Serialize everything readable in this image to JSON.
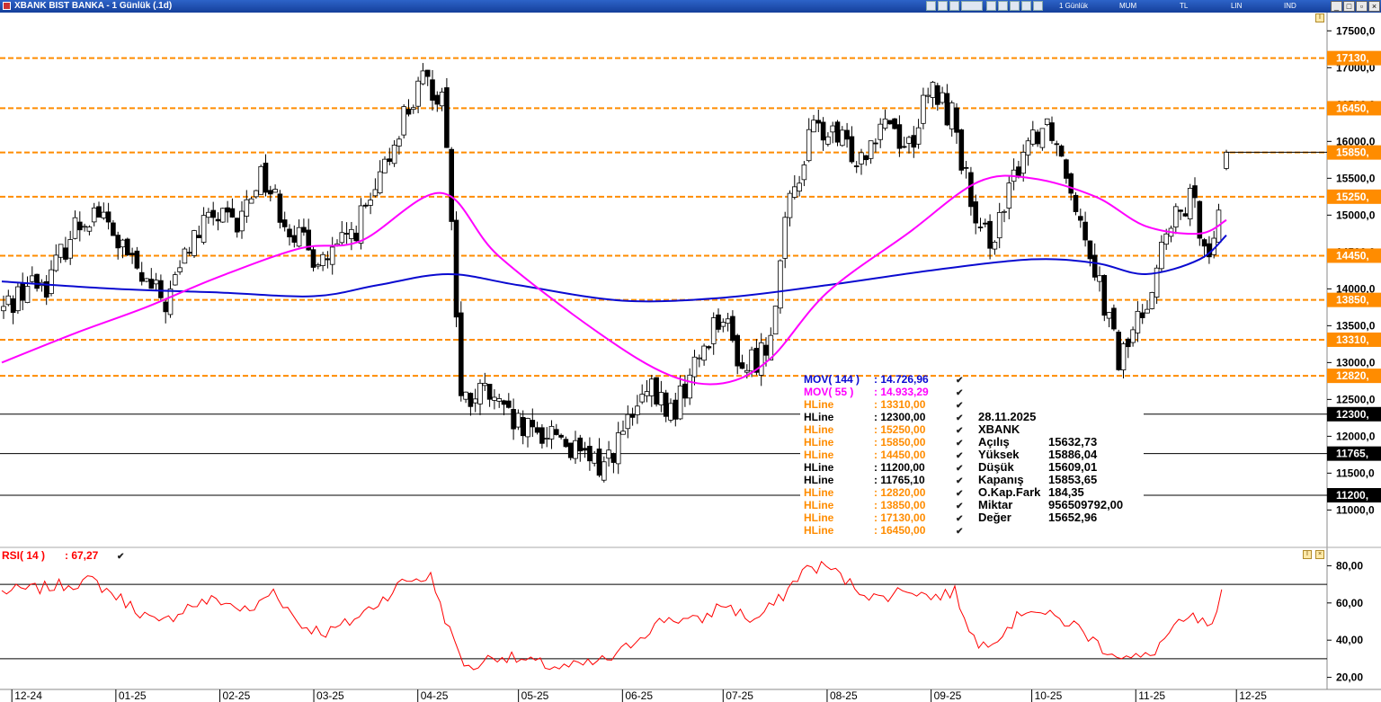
{
  "window": {
    "title": "XBANK BIST BANKA - 1 Günlük (.1d)",
    "toolbar_labels": [
      "1 Günlük",
      "MUM",
      "TL",
      "LIN",
      "IND"
    ]
  },
  "colors": {
    "mov144": "#0a0ad0",
    "mov55": "#ff00ff",
    "hline_orange": "#ff8c00",
    "hline_black": "#000000",
    "rsi": "#ff0000",
    "candle_up": "#ffffff",
    "candle_down": "#000000"
  },
  "chart_data": [
    {
      "type": "candlestick",
      "y_ticks": [
        "17500,0",
        "17000,0",
        "16500,0",
        "16000,0",
        "15500,0",
        "15000,0",
        "14500,0",
        "14000,0",
        "13500,0",
        "13000,0",
        "12500,0",
        "12000,0",
        "11500,0",
        "11000,0"
      ],
      "ylim": [
        10700,
        17650
      ],
      "x_labels": [
        "12-24",
        "01-25",
        "02-25",
        "03-25",
        "04-25",
        "05-25",
        "06-25",
        "07-25",
        "08-25",
        "09-25",
        "10-25",
        "11-25",
        "12-25"
      ],
      "close_path": [
        [
          "2024-11-28",
          13700
        ],
        [
          "2024-12-05",
          14050
        ],
        [
          "2024-12-12",
          14100
        ],
        [
          "2024-12-19",
          14800
        ],
        [
          "2024-12-26",
          15100
        ],
        [
          "2025-01-02",
          14600
        ],
        [
          "2025-01-09",
          14100
        ],
        [
          "2025-01-16",
          13800
        ],
        [
          "2025-01-23",
          14600
        ],
        [
          "2025-01-30",
          15000
        ],
        [
          "2025-02-06",
          14800
        ],
        [
          "2025-02-13",
          15600
        ],
        [
          "2025-02-20",
          15000
        ],
        [
          "2025-02-27",
          14500
        ],
        [
          "2025-03-06",
          14400
        ],
        [
          "2025-03-13",
          14800
        ],
        [
          "2025-03-20",
          15300
        ],
        [
          "2025-03-27",
          16300
        ],
        [
          "2025-04-03",
          16800
        ],
        [
          "2025-04-09",
          16600
        ],
        [
          "2025-04-14",
          12400
        ],
        [
          "2025-04-21",
          12600
        ],
        [
          "2025-04-28",
          12200
        ],
        [
          "2025-05-05",
          12000
        ],
        [
          "2025-05-12",
          12100
        ],
        [
          "2025-05-19",
          11700
        ],
        [
          "2025-05-26",
          11600
        ],
        [
          "2025-06-02",
          12100
        ],
        [
          "2025-06-09",
          12600
        ],
        [
          "2025-06-16",
          12300
        ],
        [
          "2025-06-23",
          13000
        ],
        [
          "2025-06-30",
          13700
        ],
        [
          "2025-07-07",
          12900
        ],
        [
          "2025-07-14",
          13200
        ],
        [
          "2025-07-21",
          15200
        ],
        [
          "2025-07-28",
          16200
        ],
        [
          "2025-08-04",
          16000
        ],
        [
          "2025-08-11",
          15800
        ],
        [
          "2025-08-18",
          16400
        ],
        [
          "2025-08-25",
          15900
        ],
        [
          "2025-09-01",
          16700
        ],
        [
          "2025-09-08",
          16300
        ],
        [
          "2025-09-15",
          14600
        ],
        [
          "2025-09-22",
          14900
        ],
        [
          "2025-09-29",
          16000
        ],
        [
          "2025-10-06",
          16300
        ],
        [
          "2025-10-13",
          15400
        ],
        [
          "2025-10-20",
          14300
        ],
        [
          "2025-10-27",
          13000
        ],
        [
          "2025-11-03",
          13700
        ],
        [
          "2025-11-10",
          14700
        ],
        [
          "2025-11-17",
          15200
        ],
        [
          "2025-11-24",
          14500
        ],
        [
          "2025-11-28",
          15853.65
        ]
      ],
      "series": [
        {
          "name": "MOV( 144 )",
          "value": "14.726,96",
          "points": [
            [
              "2024-11-28",
              14100
            ],
            [
              "2025-01-01",
              14000
            ],
            [
              "2025-02-01",
              13950
            ],
            [
              "2025-03-01",
              13900
            ],
            [
              "2025-03-20",
              14050
            ],
            [
              "2025-04-10",
              14200
            ],
            [
              "2025-05-01",
              14050
            ],
            [
              "2025-06-01",
              13840
            ],
            [
              "2025-07-01",
              13880
            ],
            [
              "2025-08-01",
              14050
            ],
            [
              "2025-09-01",
              14250
            ],
            [
              "2025-10-01",
              14400
            ],
            [
              "2025-10-20",
              14350
            ],
            [
              "2025-11-04",
              14200
            ],
            [
              "2025-11-20",
              14400
            ],
            [
              "2025-11-28",
              14726.96
            ]
          ]
        },
        {
          "name": "MOV( 55 )",
          "value": "14.933,29",
          "points": [
            [
              "2024-11-28",
              13000
            ],
            [
              "2024-12-20",
              13400
            ],
            [
              "2025-01-10",
              13750
            ],
            [
              "2025-01-31",
              14150
            ],
            [
              "2025-02-25",
              14550
            ],
            [
              "2025-03-15",
              14650
            ],
            [
              "2025-04-08",
              15300
            ],
            [
              "2025-04-25",
              14450
            ],
            [
              "2025-05-25",
              13400
            ],
            [
              "2025-06-15",
              12830
            ],
            [
              "2025-07-01",
              12720
            ],
            [
              "2025-07-15",
              13050
            ],
            [
              "2025-08-01",
              13950
            ],
            [
              "2025-08-25",
              14750
            ],
            [
              "2025-09-15",
              15450
            ],
            [
              "2025-10-01",
              15500
            ],
            [
              "2025-10-20",
              15250
            ],
            [
              "2025-11-04",
              14850
            ],
            [
              "2025-11-20",
              14750
            ],
            [
              "2025-11-28",
              14933.29
            ]
          ]
        }
      ],
      "hlines": [
        {
          "label": "HLine",
          "value": "13310,00",
          "axis": "13310,",
          "y": 13310,
          "color": "orange"
        },
        {
          "label": "HLine",
          "value": "12300,00",
          "axis": "12300,",
          "y": 12300,
          "color": "black"
        },
        {
          "label": "HLine",
          "value": "15250,00",
          "axis": "15250,",
          "y": 15250,
          "color": "orange"
        },
        {
          "label": "HLine",
          "value": "15850,00",
          "axis": "15850,",
          "y": 15850,
          "color": "orange"
        },
        {
          "label": "HLine",
          "value": "14450,00",
          "axis": "14450,",
          "y": 14450,
          "color": "orange"
        },
        {
          "label": "HLine",
          "value": "11200,00",
          "axis": "11200,",
          "y": 11200,
          "color": "black"
        },
        {
          "label": "HLine",
          "value": "11765,10",
          "axis": "11765,",
          "y": 11765.1,
          "color": "black"
        },
        {
          "label": "HLine",
          "value": "12820,00",
          "axis": "12820,",
          "y": 12820,
          "color": "orange"
        },
        {
          "label": "HLine",
          "value": "13850,00",
          "axis": "13850,",
          "y": 13850,
          "color": "orange"
        },
        {
          "label": "HLine",
          "value": "17130,00",
          "axis": "17130,",
          "y": 17130,
          "color": "orange"
        },
        {
          "label": "HLine",
          "value": "16450,00",
          "axis": "16450,",
          "y": 16450,
          "color": "orange"
        }
      ],
      "last_bar": {
        "date": "28.11.2025",
        "symbol": "XBANK",
        "fields": [
          {
            "label": "Açılış",
            "value": "15632,73"
          },
          {
            "label": "Yüksek",
            "value": "15886,04"
          },
          {
            "label": "Düşük",
            "value": "15609,01"
          },
          {
            "label": "Kapanış",
            "value": "15853,65"
          },
          {
            "label": "O.Kap.Fark",
            "value": "184,35"
          },
          {
            "label": "Miktar",
            "value": "956509792,00"
          },
          {
            "label": "Değer",
            "value": "15652,96"
          }
        ]
      }
    },
    {
      "type": "line",
      "name": "RSI( 14 )",
      "value": "67,27",
      "y_ticks": [
        "80,00",
        "60,00",
        "40,00",
        "20,00"
      ],
      "ylim": [
        14,
        86
      ],
      "levels": [
        70,
        30
      ],
      "points": [
        [
          "2024-11-28",
          66
        ],
        [
          "2024-12-10",
          68
        ],
        [
          "2024-12-25",
          72
        ],
        [
          "2025-01-06",
          58
        ],
        [
          "2025-01-14",
          48
        ],
        [
          "2025-01-22",
          58
        ],
        [
          "2025-01-31",
          62
        ],
        [
          "2025-02-10",
          55
        ],
        [
          "2025-02-17",
          67
        ],
        [
          "2025-02-25",
          48
        ],
        [
          "2025-03-05",
          44
        ],
        [
          "2025-03-12",
          50
        ],
        [
          "2025-03-20",
          60
        ],
        [
          "2025-03-28",
          72
        ],
        [
          "2025-04-05",
          74
        ],
        [
          "2025-04-11",
          42
        ],
        [
          "2025-04-16",
          24
        ],
        [
          "2025-04-24",
          32
        ],
        [
          "2025-05-05",
          28
        ],
        [
          "2025-05-14",
          25
        ],
        [
          "2025-05-22",
          27
        ],
        [
          "2025-05-30",
          31
        ],
        [
          "2025-06-06",
          42
        ],
        [
          "2025-06-14",
          52
        ],
        [
          "2025-06-24",
          50
        ],
        [
          "2025-07-01",
          60
        ],
        [
          "2025-07-10",
          50
        ],
        [
          "2025-07-18",
          62
        ],
        [
          "2025-07-25",
          78
        ],
        [
          "2025-08-01",
          80
        ],
        [
          "2025-08-08",
          70
        ],
        [
          "2025-08-16",
          62
        ],
        [
          "2025-08-25",
          68
        ],
        [
          "2025-09-01",
          63
        ],
        [
          "2025-09-08",
          66
        ],
        [
          "2025-09-15",
          36
        ],
        [
          "2025-09-22",
          44
        ],
        [
          "2025-09-30",
          58
        ],
        [
          "2025-10-06",
          53
        ],
        [
          "2025-10-14",
          48
        ],
        [
          "2025-10-22",
          36
        ],
        [
          "2025-10-30",
          30
        ],
        [
          "2025-11-05",
          31
        ],
        [
          "2025-11-12",
          46
        ],
        [
          "2025-11-18",
          52
        ],
        [
          "2025-11-24",
          46
        ],
        [
          "2025-11-28",
          67.27
        ]
      ]
    }
  ]
}
